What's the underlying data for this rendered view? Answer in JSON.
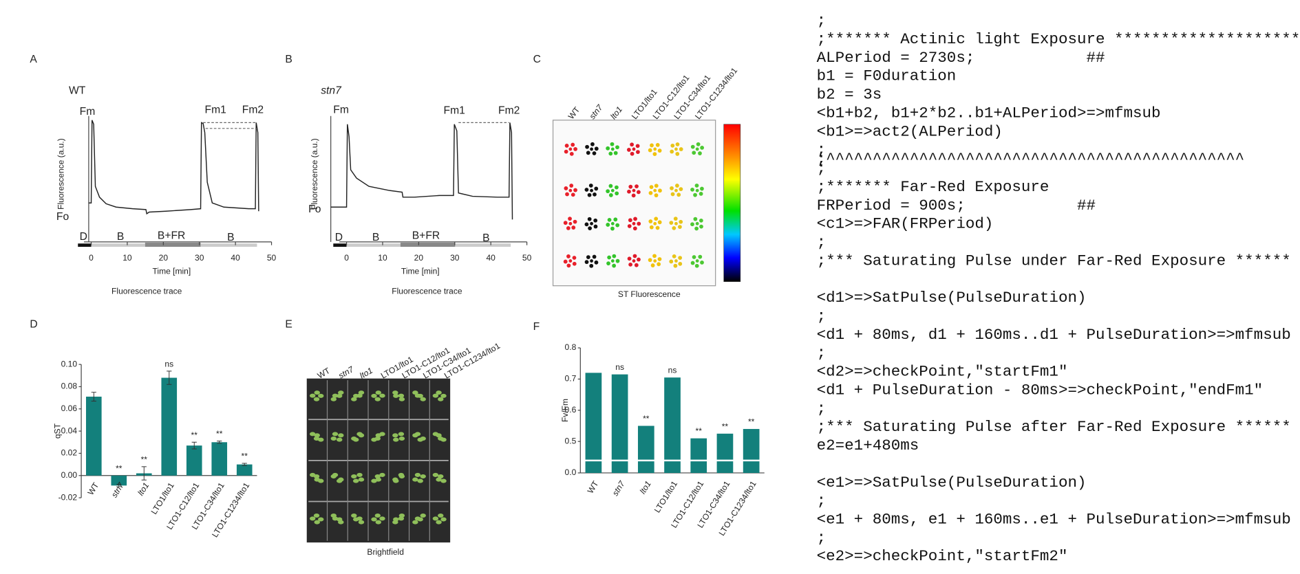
{
  "panel_a": {
    "letter": "A",
    "title": "WT",
    "xlim": [
      -2,
      50
    ],
    "xticks": [
      0,
      10,
      20,
      30,
      40,
      50
    ],
    "xlabel": "Time [min]",
    "ylabel": "Fluorescence (a.u.)",
    "caption": "Fluorescence trace",
    "fm": "Fm",
    "fo": "Fo",
    "fm1": "Fm1",
    "fm2": "Fm2",
    "phases": [
      "D",
      "B",
      "B+FR",
      "B"
    ]
  },
  "panel_b": {
    "letter": "B",
    "title": "stn7",
    "xlim": [
      -2,
      50
    ],
    "xticks": [
      0,
      10,
      20,
      30,
      40,
      50
    ],
    "xlabel": "Time [min]",
    "ylabel": "Fluorescence (a.u.)",
    "caption": "Fluorescence trace",
    "fm": "Fm",
    "fo": "Fo",
    "fm1": "Fm1",
    "fm2": "Fm2",
    "phases": [
      "D",
      "B",
      "B+FR",
      "B"
    ]
  },
  "panel_c": {
    "letter": "C",
    "labels": [
      "WT",
      "stn7",
      "lto1",
      "LTO1/lto1",
      "LTO1-C12/lto1",
      "LTO1-C34/lto1",
      "LTO1-C1234/lto1"
    ],
    "colors": [
      "#e8202a",
      "#111111",
      "#33c42a",
      "#e01a2a",
      "#f0c20c",
      "#e8c418",
      "#4cc832"
    ],
    "caption": "ST Fluorescence"
  },
  "panel_e": {
    "letter": "E",
    "labels": [
      "WT",
      "stn7",
      "lto1",
      "LTO1/lto1",
      "LTO1-C12/lto1",
      "LTO1-C34/lto1",
      "LTO1-C1234/lto1"
    ],
    "caption": "Brightfield"
  },
  "chart_data": [
    {
      "type": "bar",
      "letter": "D",
      "ylabel": "qST",
      "categories": [
        "WT",
        "stn7",
        "lto1",
        "LTO1/lto1",
        "LTO1-C12/lto1",
        "LTO1-C34/lto1",
        "LTO1-C1234/lto1"
      ],
      "values": [
        0.071,
        -0.009,
        0.002,
        0.088,
        0.027,
        0.03,
        0.01
      ],
      "errors": [
        0.004,
        0.001,
        0.006,
        0.006,
        0.003,
        0.001,
        0.001
      ],
      "significance": [
        null,
        "**",
        "**",
        "ns",
        "**",
        "**",
        "**"
      ],
      "color": "#13807c",
      "ylim": [
        -0.02,
        0.1
      ],
      "yticks": [
        {
          "value": 0.1,
          "label": "0.10"
        },
        0.08,
        0.06,
        0.04,
        0.02,
        {
          "value": 0,
          "label": "0.00"
        },
        -0.02
      ]
    },
    {
      "type": "bar",
      "letter": "F",
      "ylabel": "Fv/Fm",
      "categories": [
        "WT",
        "stn7",
        "lto1",
        "LTO1/lto1",
        "LTO1-C12/lto1",
        "LTO1-C34/lto1",
        "LTO1-C1234/lto1"
      ],
      "values": [
        0.72,
        0.715,
        0.55,
        0.705,
        0.51,
        0.525,
        0.54
      ],
      "significance": [
        null,
        "ns",
        "**",
        "ns",
        "**",
        "**",
        "**"
      ],
      "color": "#13807c",
      "axis_break": true,
      "ylim": [
        0,
        0.8
      ],
      "yticks": [
        {
          "value": 0,
          "label": "0.0"
        },
        0.5,
        0.6,
        0.7,
        0.8
      ]
    }
  ],
  "code": {
    "lines": [
      ";",
      ";******* Actinic light Exposure ********************",
      "ALPeriod = 2730s;            ##",
      "b1 = F0duration",
      "b2 = 3s",
      "<b1+b2, b1+2*b2..b1+ALPeriod>=>mfmsub",
      "<b1>=>act2(ALPeriod)",
      ";",
      ";^^^^^^^^^^^^^^^^^^^^^^^^^^^^^^^^^^^^^^^^^^^^^",
      ";",
      ";******* Far-Red Exposure",
      "FRPeriod = 900s;            ##",
      "<c1>=>FAR(FRPeriod)",
      ";",
      ";*** Saturating Pulse under Far-Red Exposure ******",
      "<d1>=>SatPulse(PulseDuration)",
      ";",
      "<d1 + 80ms, d1 + 160ms..d1 + PulseDuration>=>mfmsub",
      ";",
      "<d2>=>checkPoint,\"startFm1\"",
      "<d1 + PulseDuration - 80ms>=>checkPoint,\"endFm1\"",
      ";",
      ";*** Saturating Pulse after Far-Red Exposure ******",
      "e2=e1+480ms",
      "<e1>=>SatPulse(PulseDuration)",
      ";",
      "<e1 + 80ms, e1 + 160ms..e1 + PulseDuration>=>mfmsub",
      ";",
      "<e2>=>checkPoint,\"startFm2\""
    ]
  }
}
